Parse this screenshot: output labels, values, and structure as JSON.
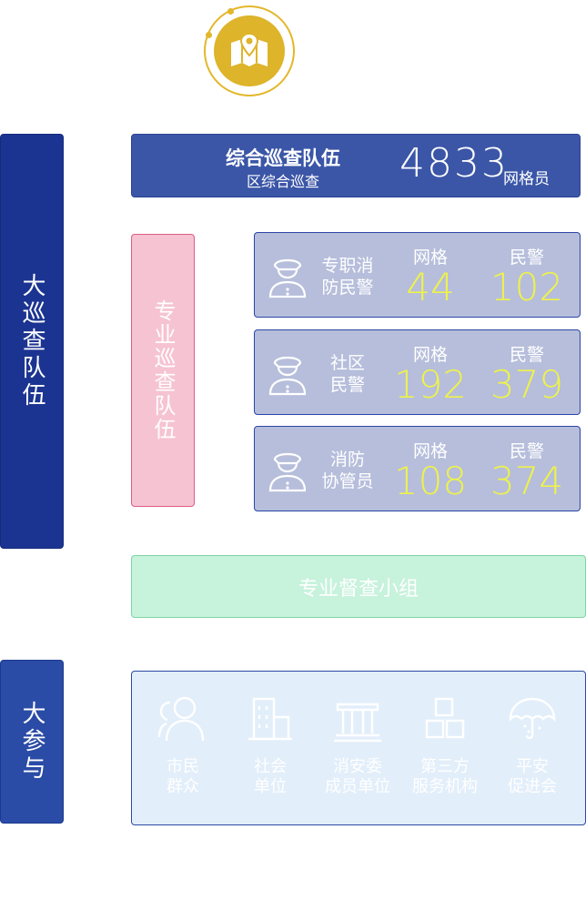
{
  "colors": {
    "main_bar": "#1c3491",
    "join_bar": "#2a4ba6",
    "pro_bar": "#f6c3d3",
    "patrol_bar": "#3b56a7",
    "card_bg": "#b6bedb",
    "number_yellow": "#eef24a",
    "supervise_bg": "#c7f2dc",
    "panel_bg": "#e2eefa",
    "emblem_gold": "#ddb42a"
  },
  "emblem": {
    "icon": "map-pin-icon"
  },
  "main_bar_label": "大巡查队伍",
  "join_bar_label": "大参与",
  "pro_bar_label": "专业巡查队伍",
  "patrol": {
    "title": "综合巡查队伍",
    "subtitle": "区综合巡查",
    "count": "4833",
    "unit": "网格员"
  },
  "teams": [
    {
      "name": "专职消\n防民警",
      "grid_label": "网格",
      "police_label": "民警",
      "grid_count": "44",
      "police_count": "102",
      "icon": "officer-icon"
    },
    {
      "name": "社区\n民警",
      "grid_label": "网格",
      "police_label": "民警",
      "grid_count": "192",
      "police_count": "379",
      "icon": "officer-icon"
    },
    {
      "name": "消防\n协管员",
      "grid_label": "网格",
      "police_label": "民警",
      "grid_count": "108",
      "police_count": "374",
      "icon": "officer-icon"
    }
  ],
  "supervision_label": "专业督查小组",
  "participants": [
    {
      "label": "市民\n群众",
      "icon": "people-icon"
    },
    {
      "label": "社会\n单位",
      "icon": "building-icon"
    },
    {
      "label": "消安委\n成员单位",
      "icon": "government-icon"
    },
    {
      "label": "第三方\n服务机构",
      "icon": "blocks-icon"
    },
    {
      "label": "平安\n促进会",
      "icon": "umbrella-icon"
    }
  ]
}
